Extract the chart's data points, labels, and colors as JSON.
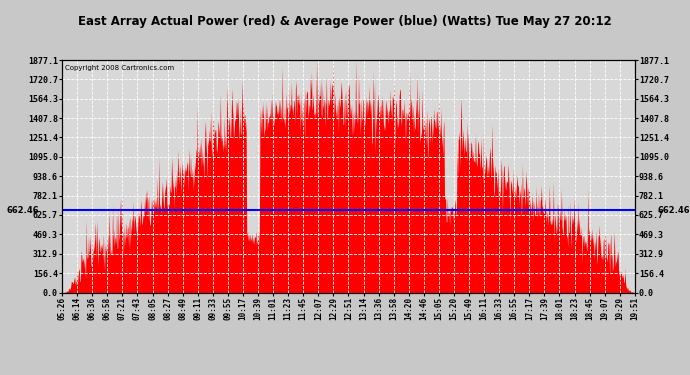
{
  "title": "East Array Actual Power (red) & Average Power (blue) (Watts) Tue May 27 20:12",
  "copyright": "Copyright 2008 Cartronics.com",
  "avg_power": 662.46,
  "ymin": 0.0,
  "ymax": 1877.1,
  "yticks": [
    0.0,
    156.4,
    312.9,
    469.3,
    625.7,
    782.1,
    938.6,
    1095.0,
    1251.4,
    1407.8,
    1564.3,
    1720.7,
    1877.1
  ],
  "xtick_labels": [
    "05:26",
    "06:14",
    "06:36",
    "06:58",
    "07:21",
    "07:43",
    "08:05",
    "08:27",
    "08:49",
    "09:11",
    "09:33",
    "09:55",
    "10:17",
    "10:39",
    "11:01",
    "11:23",
    "11:45",
    "12:07",
    "12:29",
    "12:51",
    "13:14",
    "13:36",
    "13:58",
    "14:20",
    "14:46",
    "15:05",
    "15:20",
    "15:49",
    "16:11",
    "16:33",
    "16:55",
    "17:17",
    "17:39",
    "18:01",
    "18:23",
    "18:45",
    "19:07",
    "19:29",
    "19:51"
  ],
  "bg_color": "#c8c8c8",
  "plot_bg_color": "#d8d8d8",
  "line_color": "#0000ff",
  "fill_color": "#ff0000",
  "grid_color": "#ffffff"
}
